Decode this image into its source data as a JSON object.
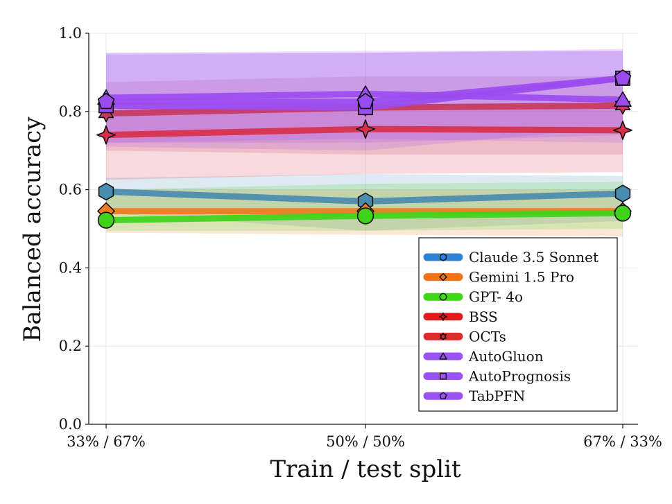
{
  "chart_data": {
    "type": "line",
    "title": "",
    "xlabel": "Train / test split",
    "ylabel": "Balanced accuracy",
    "categories": [
      "33% / 67%",
      "50% / 50%",
      "67% / 33%"
    ],
    "ylim": [
      0.0,
      1.0
    ],
    "yticks": [
      "0.0",
      "0.2",
      "0.4",
      "0.6",
      "0.8",
      "1.0"
    ],
    "grid": true,
    "legend_position": "lower-right",
    "series": [
      {
        "name": "Claude 3.5 Sonnet",
        "marker": "hexagon",
        "color": "#4a8bb0",
        "legend_color": "#2f83d6",
        "values": [
          0.595,
          0.57,
          0.59
        ],
        "band_low": [
          0.54,
          0.495,
          0.52
        ],
        "band_high": [
          0.63,
          0.64,
          0.635
        ]
      },
      {
        "name": "Gemini 1.5 Pro",
        "marker": "diamond",
        "color": "#f07a1e",
        "legend_color": "#f47216",
        "values": [
          0.545,
          0.545,
          0.545
        ],
        "band_low": [
          0.49,
          0.485,
          0.48
        ],
        "band_high": [
          0.6,
          0.6,
          0.6
        ]
      },
      {
        "name": "GPT- 4o",
        "marker": "circle",
        "color": "#3ed21a",
        "legend_color": "#3dd913",
        "values": [
          0.522,
          0.533,
          0.54
        ],
        "band_low": [
          0.495,
          0.495,
          0.5
        ],
        "band_high": [
          0.6,
          0.615,
          0.62
        ]
      },
      {
        "name": "BSS",
        "marker": "star4",
        "color": "#d8304a",
        "legend_color": "#dd1e1e",
        "values": [
          0.74,
          0.755,
          0.752
        ],
        "band_low": [
          0.625,
          0.64,
          0.645
        ],
        "band_high": [
          0.8,
          0.815,
          0.82
        ]
      },
      {
        "name": "OCTs",
        "marker": "star6",
        "color": "#c8385e",
        "legend_color": "#dd2e2e",
        "values": [
          0.795,
          0.81,
          0.815
        ],
        "band_low": [
          0.7,
          0.69,
          0.69
        ],
        "band_high": [
          0.875,
          0.89,
          0.89
        ]
      },
      {
        "name": "AutoGluon",
        "marker": "triangle",
        "color": "#9b4cf0",
        "legend_color": "#9a52f2",
        "values": [
          0.835,
          0.845,
          0.83
        ],
        "band_low": [
          0.72,
          0.73,
          0.72
        ],
        "band_high": [
          0.95,
          0.955,
          0.955
        ]
      },
      {
        "name": "AutoPrognosis",
        "marker": "square",
        "color": "#9b4cf0",
        "legend_color": "#9a52f2",
        "values": [
          0.815,
          0.81,
          0.885
        ],
        "band_low": [
          0.71,
          0.7,
          0.76
        ],
        "band_high": [
          0.95,
          0.95,
          0.955
        ]
      },
      {
        "name": "TabPFN",
        "marker": "pentagon",
        "color": "#9b4cf0",
        "legend_color": "#9a52f2",
        "values": [
          0.825,
          0.825,
          0.885
        ],
        "band_low": [
          0.72,
          0.72,
          0.74
        ],
        "band_high": [
          0.945,
          0.95,
          0.96
        ]
      }
    ]
  }
}
